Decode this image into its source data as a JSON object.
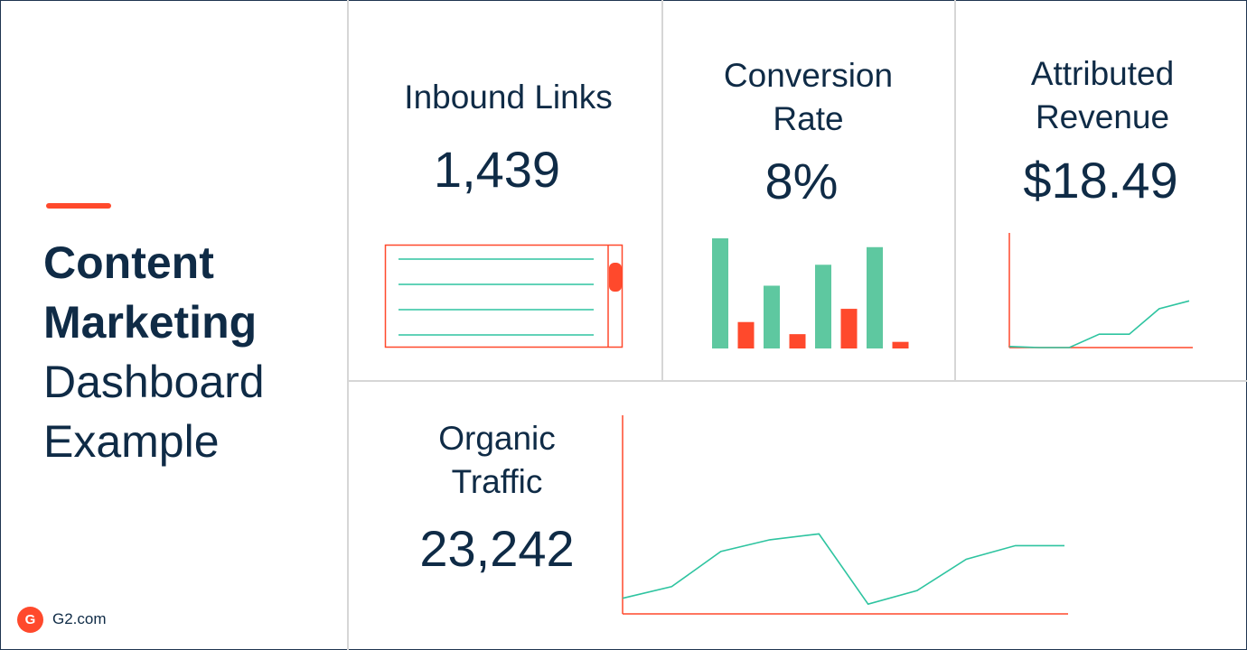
{
  "title": {
    "line1": "Content",
    "line2": "Marketing",
    "line3": "Dashboard",
    "line4": "Example"
  },
  "brand": {
    "logo_letter": "G",
    "site": "G2.com"
  },
  "cards": {
    "inbound_links": {
      "label": "Inbound Links",
      "value": "1,439"
    },
    "conversion_rate": {
      "label": "Conversion\nRate",
      "value": "8%"
    },
    "attributed_revenue": {
      "label": "Attributed\nRevenue",
      "value": "$18.49"
    },
    "organic_traffic": {
      "label": "Organic\nTraffic",
      "value": "23,242"
    }
  },
  "colors": {
    "navy": "#0f2b46",
    "orange": "#ff492c",
    "green": "#5ec8a0",
    "teal": "#2ec4a0"
  },
  "chart_data": [
    {
      "type": "bar",
      "title": "Conversion Rate",
      "series": [
        {
          "name": "green",
          "values": [
            100,
            57,
            76,
            92
          ]
        },
        {
          "name": "orange",
          "values": [
            24,
            13,
            36,
            6
          ]
        }
      ]
    },
    {
      "type": "line",
      "title": "Attributed Revenue",
      "x": [
        0,
        1,
        2,
        3,
        4,
        5,
        6
      ],
      "values": [
        1,
        0,
        0,
        12,
        12,
        35,
        42
      ],
      "ylim": [
        0,
        100
      ]
    },
    {
      "type": "line",
      "title": "Organic Traffic",
      "x": [
        0,
        1,
        2,
        3,
        4,
        5,
        6,
        7,
        8,
        9
      ],
      "values": [
        8,
        14,
        32,
        38,
        41,
        5,
        12,
        28,
        35,
        35
      ],
      "ylim": [
        0,
        100
      ]
    }
  ]
}
